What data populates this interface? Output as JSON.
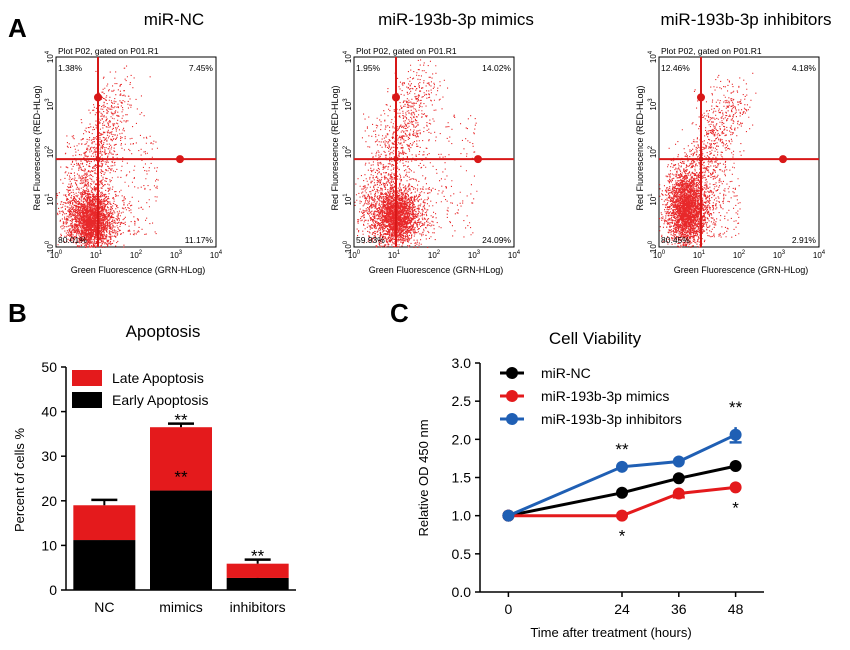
{
  "panel_labels": {
    "a": "A",
    "b": "B",
    "c": "C"
  },
  "flow_plots": [
    {
      "title": "miR-NC",
      "gate_label": "Plot P02, gated on P01.R1",
      "xlabel": "Green Fluorescence (GRN-HLog)",
      "ylabel": "Red Fluorescence (RED-HLog)",
      "quadrants": {
        "top_left": "1.38%",
        "top_right": "7.45%",
        "bottom_left": "80.01%",
        "bottom_right": "11.17%"
      }
    },
    {
      "title": "miR-193b-3p mimics",
      "gate_label": "Plot P02, gated on P01.R1",
      "xlabel": "Green Fluorescence (GRN-HLog)",
      "ylabel": "Red Fluorescence (RED-HLog)",
      "quadrants": {
        "top_left": "1.95%",
        "top_right": "14.02%",
        "bottom_left": "59.93%",
        "bottom_right": "24.09%"
      }
    },
    {
      "title": "miR-193b-3p inhibitors",
      "gate_label": "Plot P02, gated on P01.R1",
      "xlabel": "Green Fluorescence (GRN-HLog)",
      "ylabel": "Red Fluorescence (RED-HLog)",
      "quadrants": {
        "top_left": "12.46%",
        "top_right": "4.18%",
        "bottom_left": "80.45%",
        "bottom_right": "2.91%"
      }
    }
  ],
  "flow_axis": {
    "tick_base": "10",
    "exponents": [
      "0",
      "1",
      "2",
      "3",
      "4"
    ],
    "range_log10": [
      0,
      4
    ],
    "gate_x_log10": 1.05,
    "gate_y_log10": 1.85
  },
  "colors": {
    "red": "#e41a1c",
    "black": "#000000",
    "blue": "#1f5fb4",
    "gate": "#d81818",
    "dot": "#e8282a"
  },
  "chart_data": [
    {
      "type": "bar",
      "stacked": true,
      "title": "Apoptosis",
      "xlabel": "",
      "ylabel": "Percent of cells %",
      "ylim": [
        0,
        50
      ],
      "yticks": [
        "0",
        "10",
        "20",
        "30",
        "40",
        "50"
      ],
      "categories": [
        "NC",
        "mimics",
        "inhibitors"
      ],
      "series": [
        {
          "name": "Early Apoptosis",
          "color": "#000000",
          "values": [
            11.2,
            22.3,
            2.7
          ],
          "errors": [
            1.0,
            1.5,
            1.0
          ]
        },
        {
          "name": "Late Apoptosis",
          "color": "#e41a1c",
          "values": [
            7.8,
            14.2,
            3.2
          ],
          "errors": [
            1.2,
            0.8,
            0.9
          ]
        }
      ],
      "legend_order": [
        "Late Apoptosis",
        "Early Apoptosis"
      ],
      "legend_position": "top-left",
      "annotations": [
        {
          "category": "mimics",
          "series": "Late Apoptosis",
          "text": "**"
        },
        {
          "category": "mimics",
          "series": "Early Apoptosis",
          "text": "**"
        },
        {
          "category": "inhibitors",
          "series": "Late Apoptosis",
          "text": "**"
        },
        {
          "category": "inhibitors",
          "series": "Early Apoptosis",
          "text": "**"
        }
      ]
    },
    {
      "type": "line",
      "title": "Cell Viability",
      "xlabel": "Time after treatment (hours)",
      "ylabel": "Relative OD 450 nm",
      "x": [
        0,
        24,
        36,
        48
      ],
      "xlim": [
        -6,
        54
      ],
      "ylim": [
        0,
        3.0
      ],
      "yticks": [
        "0.0",
        "0.5",
        "1.0",
        "1.5",
        "2.0",
        "2.5",
        "3.0"
      ],
      "xticks": [
        "0",
        "24",
        "36",
        "48"
      ],
      "series": [
        {
          "name": "miR-NC",
          "color": "#000000",
          "values": [
            1.0,
            1.3,
            1.49,
            1.65
          ],
          "errors": [
            0.02,
            0.03,
            0.03,
            0.03
          ]
        },
        {
          "name": "miR-193b-3p mimics",
          "color": "#e41a1c",
          "values": [
            1.0,
            1.0,
            1.29,
            1.37
          ],
          "errors": [
            0.02,
            0.02,
            0.05,
            0.03
          ]
        },
        {
          "name": "miR-193b-3p inhibitors",
          "color": "#1f5fb4",
          "values": [
            1.0,
            1.64,
            1.71,
            2.06
          ],
          "errors": [
            0.02,
            0.03,
            0.03,
            0.1
          ]
        }
      ],
      "legend_position": "top-left",
      "annotations": [
        {
          "x": 24,
          "text": "**",
          "side": "above"
        },
        {
          "x": 24,
          "text": "*",
          "side": "below"
        },
        {
          "x": 48,
          "text": "**",
          "side": "above"
        },
        {
          "x": 48,
          "text": "*",
          "side": "below"
        }
      ]
    }
  ]
}
